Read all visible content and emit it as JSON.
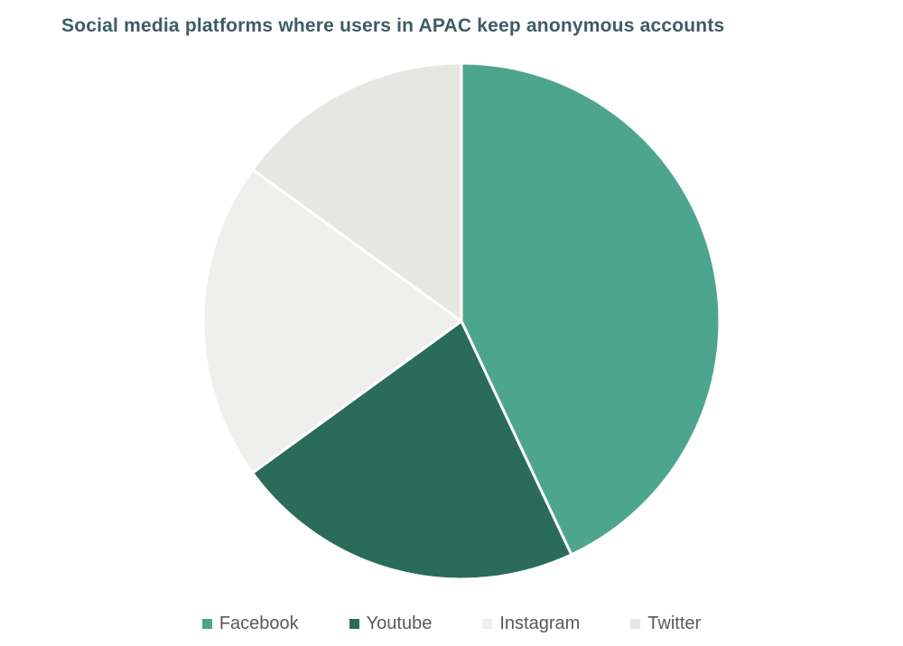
{
  "page": {
    "background_color": "#ffffff"
  },
  "chart_data": {
    "type": "pie",
    "title": "Social media platforms where users in APAC keep anonymous accounts",
    "labels": [
      "Facebook",
      "Youtube",
      "Instagram",
      "Twitter"
    ],
    "values": [
      43,
      22,
      20,
      15
    ],
    "unit": "percent (estimated from slice angles)",
    "colors": [
      "#4ea58e",
      "#2a6b5a",
      "#efefed",
      "#e6e6e3"
    ],
    "slice_border_color": "#ffffff",
    "start_angle_deg": 0,
    "direction": "clockwise",
    "legend_position": "bottom",
    "title_color": "#3e5c64",
    "legend_text_color": "#595959",
    "grid": "off"
  }
}
